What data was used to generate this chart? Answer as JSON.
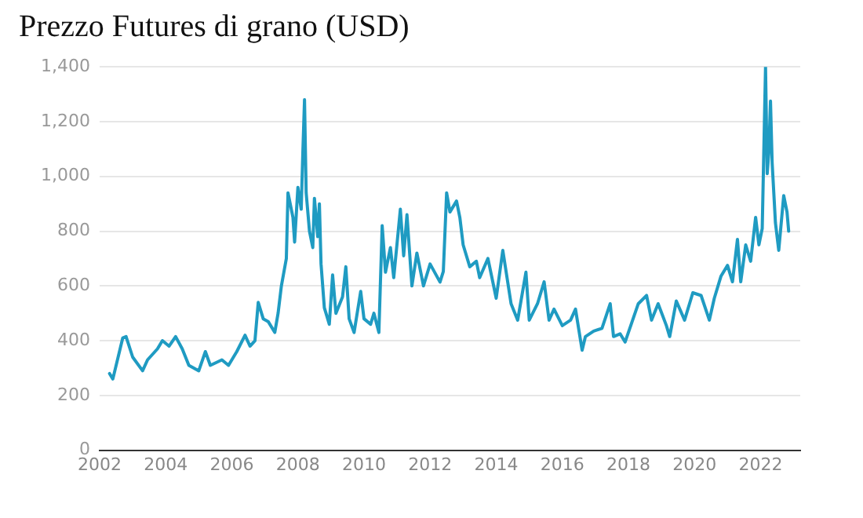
{
  "chart_data": {
    "type": "line",
    "title": "Prezzo Futures di grano (USD)",
    "xlim": [
      2002,
      2023.2
    ],
    "xticks": [
      2002,
      2004,
      2006,
      2008,
      2010,
      2012,
      2014,
      2016,
      2018,
      2020,
      2022
    ],
    "ylim": [
      0,
      1400
    ],
    "yticks": [
      0,
      200,
      400,
      600,
      800,
      {
        "value": 1000,
        "label": "1,000"
      },
      {
        "value": 1200,
        "label": "1,200"
      },
      {
        "value": 1400,
        "label": "1,400"
      }
    ],
    "grid": "y",
    "legend": false,
    "marker": "none",
    "line_style": "solid",
    "series": [
      {
        "color": "#1f9bc2",
        "x": [
          2002.3,
          2002.4,
          2002.7,
          2002.8,
          2003.0,
          2003.3,
          2003.45,
          2003.75,
          2003.9,
          2004.1,
          2004.3,
          2004.5,
          2004.7,
          2005.0,
          2005.2,
          2005.35,
          2005.7,
          2005.9,
          2006.15,
          2006.4,
          2006.55,
          2006.7,
          2006.8,
          2006.95,
          2007.1,
          2007.3,
          2007.4,
          2007.5,
          2007.65,
          2007.7,
          2007.85,
          2007.9,
          2008.0,
          2008.1,
          2008.15,
          2008.2,
          2008.25,
          2008.35,
          2008.45,
          2008.5,
          2008.6,
          2008.65,
          2008.7,
          2008.8,
          2008.95,
          2009.05,
          2009.15,
          2009.35,
          2009.45,
          2009.55,
          2009.7,
          2009.9,
          2010.0,
          2010.2,
          2010.3,
          2010.45,
          2010.55,
          2010.65,
          2010.8,
          2010.9,
          2011.1,
          2011.2,
          2011.3,
          2011.45,
          2011.6,
          2011.8,
          2012.0,
          2012.3,
          2012.4,
          2012.5,
          2012.6,
          2012.8,
          2012.9,
          2013.0,
          2013.2,
          2013.4,
          2013.5,
          2013.75,
          2014.0,
          2014.2,
          2014.45,
          2014.65,
          2014.9,
          2015.0,
          2015.25,
          2015.45,
          2015.6,
          2015.75,
          2016.0,
          2016.25,
          2016.4,
          2016.6,
          2016.7,
          2016.95,
          2017.2,
          2017.45,
          2017.55,
          2017.75,
          2017.9,
          2018.1,
          2018.3,
          2018.55,
          2018.7,
          2018.9,
          2019.15,
          2019.25,
          2019.45,
          2019.7,
          2019.95,
          2020.2,
          2020.45,
          2020.6,
          2020.8,
          2021.0,
          2021.15,
          2021.3,
          2021.4,
          2021.55,
          2021.7,
          2021.85,
          2021.95,
          2022.05,
          2022.15,
          2022.2,
          2022.25,
          2022.3,
          2022.35,
          2022.45,
          2022.55,
          2022.7,
          2022.8,
          2022.85
        ],
        "values": [
          280,
          260,
          410,
          415,
          340,
          290,
          330,
          370,
          400,
          380,
          415,
          370,
          310,
          290,
          360,
          310,
          330,
          310,
          360,
          420,
          380,
          400,
          540,
          480,
          470,
          430,
          500,
          600,
          700,
          940,
          850,
          760,
          960,
          880,
          1090,
          1280,
          940,
          800,
          740,
          920,
          780,
          900,
          680,
          520,
          460,
          640,
          500,
          560,
          670,
          480,
          430,
          580,
          480,
          460,
          500,
          430,
          820,
          650,
          740,
          630,
          880,
          710,
          860,
          600,
          720,
          600,
          680,
          614,
          653,
          940,
          870,
          910,
          850,
          750,
          670,
          690,
          630,
          700,
          555,
          730,
          535,
          475,
          650,
          475,
          535,
          615,
          475,
          515,
          455,
          475,
          515,
          365,
          415,
          435,
          445,
          535,
          415,
          425,
          395,
          465,
          535,
          565,
          475,
          535,
          455,
          415,
          545,
          475,
          575,
          565,
          475,
          555,
          635,
          675,
          615,
          770,
          615,
          750,
          690,
          850,
          750,
          810,
          1400,
          1010,
          1090,
          1275,
          1050,
          830,
          730,
          930,
          870,
          800
        ]
      }
    ]
  }
}
